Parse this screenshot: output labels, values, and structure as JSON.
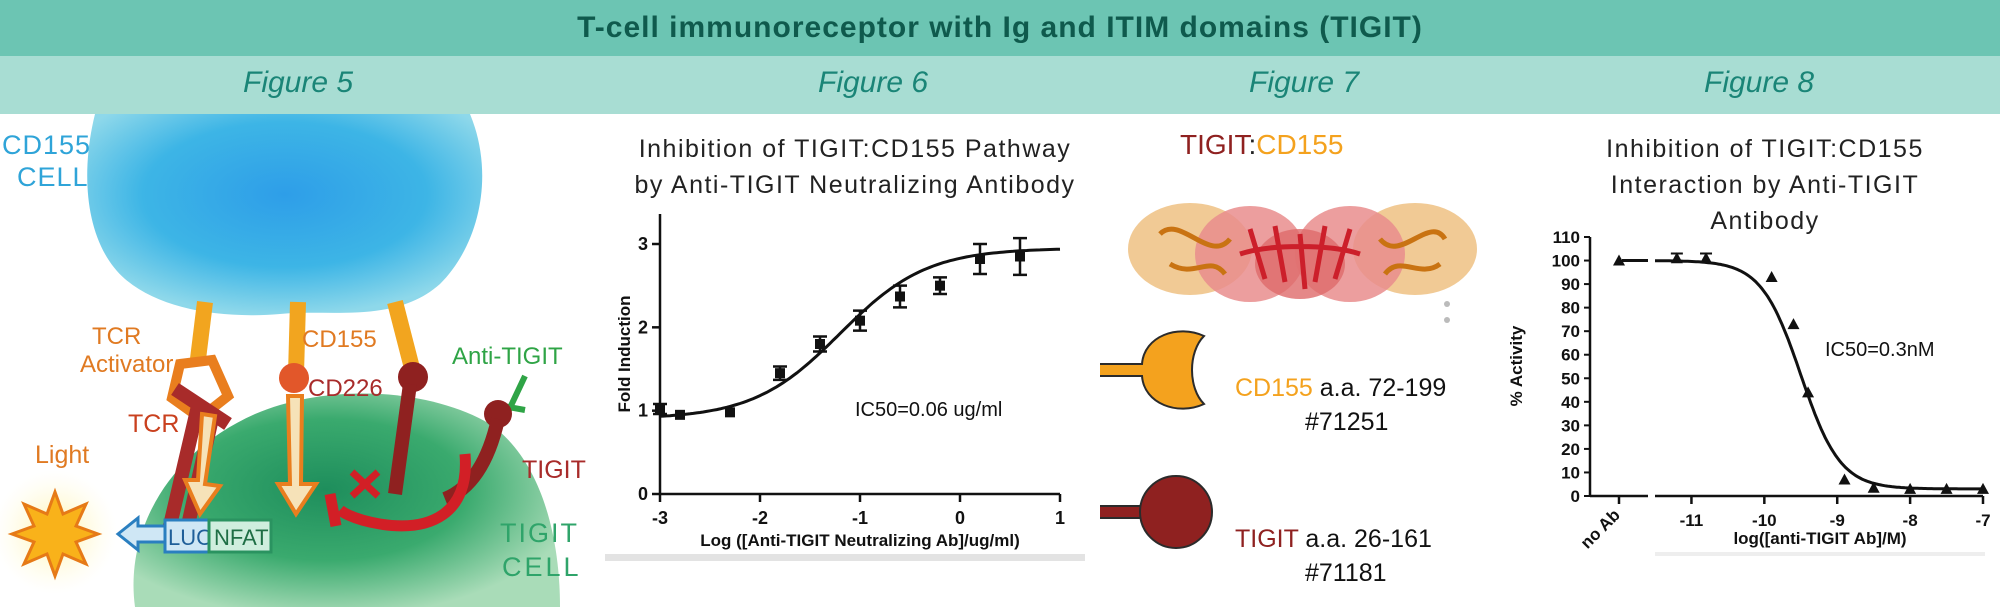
{
  "header": {
    "title": "T-cell immunoreceptor with Ig and ITIM domains (TIGIT)"
  },
  "figures": [
    "Figure 5",
    "Figure 6",
    "Figure 7",
    "Figure 8"
  ],
  "fig5": {
    "cd155_cell": [
      "CD155",
      "CELL"
    ],
    "tigit_cell": [
      "TIGIT",
      "CELL"
    ],
    "tcr_activator": [
      "TCR",
      "Activator"
    ],
    "cd155": "CD155",
    "cd226": "CD226",
    "anti_tigit": "Anti-TIGIT",
    "tcr": "TCR",
    "tigit": "TIGIT",
    "light": "Light",
    "luc": "LUC",
    "nfat": "NFAT"
  },
  "fig6": {
    "title": [
      "Inhibition of TIGIT:CD155 Pathway",
      "by Anti-TIGIT Neutralizing Antibody"
    ],
    "annotation": "IC50=0.06 ug/ml",
    "xlabel": "Log ([Anti-TIGIT Neutralizing Ab]/ug/ml)",
    "ylabel": "Fold Induction"
  },
  "fig7": {
    "title_tigit": "TIGIT",
    "title_sep": ":",
    "title_cd155": "CD155",
    "cd155_label": "CD155",
    "cd155_range": " a.a. 72-199",
    "cd155_cat": "#71251",
    "tigit_label": "TIGIT",
    "tigit_range": "  a.a. 26-161",
    "tigit_cat": "#71181"
  },
  "fig8": {
    "title": [
      "Inhibition of TIGIT:CD155",
      "Interaction by Anti-TIGIT",
      "Antibody"
    ],
    "annotation": "IC50=0.3nM",
    "xlabel": "log([anti-TIGIT Ab]/M)",
    "ylabel": "% Activity",
    "noab_label": "no Ab"
  },
  "colors": {
    "banner": "#6cc5b3",
    "figbar": "#a8ddd3",
    "cd155_orange": "#f4a21e",
    "tigit_red": "#8f2120",
    "cd155_cell_blue": "#38b4e0",
    "tigit_cell_green": "#2fa46a"
  },
  "chart_data": [
    {
      "type": "scatter",
      "x": [
        -3,
        -2.8,
        -2.3,
        -1.8,
        -1.4,
        -1.0,
        -0.6,
        -0.2,
        0.2,
        0.6
      ],
      "y": [
        1.02,
        0.95,
        0.98,
        1.45,
        1.8,
        2.08,
        2.37,
        2.5,
        2.82,
        2.85
      ],
      "err": [
        0.06,
        0.03,
        0.03,
        0.08,
        0.09,
        0.12,
        0.13,
        0.1,
        0.18,
        0.22
      ],
      "title": "Inhibition of TIGIT:CD155 Pathway by Anti-TIGIT Neutralizing Antibody",
      "xlabel": "Log ([Anti-TIGIT Neutralizing Ab]/ug/ml)",
      "ylabel": "Fold Induction",
      "xlim": [
        -3,
        1
      ],
      "ylim": [
        0,
        3.3
      ],
      "xticks": [
        -3,
        -2,
        -1,
        0,
        1
      ],
      "yticks": [
        0,
        1,
        2,
        3
      ],
      "fit": {
        "bottom": 0.9,
        "top": 2.95,
        "logEC50": -1.2,
        "hill": 1
      },
      "annotation": "IC50=0.06 ug/ml"
    },
    {
      "type": "scatter",
      "x": [
        -11.2,
        -10.8,
        -9.9,
        -9.6,
        -9.4,
        -8.9,
        -8.5,
        -8.0,
        -7.5,
        -7.0
      ],
      "y": [
        101,
        101,
        93,
        73,
        44,
        7,
        3.5,
        3,
        3,
        3
      ],
      "err": [
        2,
        2,
        0,
        0,
        0,
        0,
        0,
        0,
        0,
        0
      ],
      "noab_y": 100,
      "noab_label": "no Ab",
      "title": "Inhibition of TIGIT:CD155 Interaction by Anti-TIGIT Antibody",
      "xlabel": "log([anti-TIGIT Ab]/M)",
      "ylabel": "% Activity",
      "xlim": [
        -11.5,
        -7
      ],
      "ylim": [
        0,
        110
      ],
      "xticks": [
        -11,
        -10,
        -9,
        -8,
        -7
      ],
      "yticks": [
        0,
        10,
        20,
        30,
        40,
        50,
        60,
        70,
        80,
        90,
        100,
        110
      ],
      "fit": {
        "bottom": 3,
        "top": 100,
        "logIC50": -9.5,
        "hill": 1.6
      },
      "annotation": "IC50=0.3nM"
    }
  ]
}
